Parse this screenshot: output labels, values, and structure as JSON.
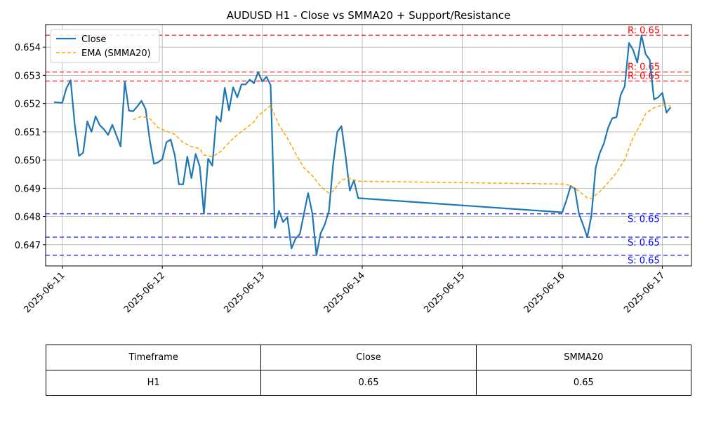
{
  "chart_data": {
    "type": "line",
    "title": "AUDUSD H1 - Close vs SMMA20 + Support/Resistance",
    "xlabel": "",
    "ylabel": "",
    "x_ticks": [
      "2025-06-11",
      "2025-06-12",
      "2025-06-13",
      "2025-06-14",
      "2025-06-15",
      "2025-06-16",
      "2025-06-17"
    ],
    "y_ticks": [
      "0.647",
      "0.648",
      "0.649",
      "0.650",
      "0.651",
      "0.652",
      "0.653",
      "0.654"
    ],
    "xlim": [
      "2025-06-10T20:00",
      "2025-06-17T07:00"
    ],
    "ylim": [
      0.64625,
      0.6548
    ],
    "grid": true,
    "legend_position": "top-left",
    "series": [
      {
        "name": "Close",
        "color": "#1f77b4",
        "style": "solid",
        "points": [
          [
            "2025-06-10T22:00",
            0.65205
          ],
          [
            "2025-06-11T00:00",
            0.65203
          ],
          [
            "2025-06-11T01:00",
            0.65255
          ],
          [
            "2025-06-11T02:00",
            0.65283
          ],
          [
            "2025-06-11T03:00",
            0.65125
          ],
          [
            "2025-06-11T04:00",
            0.65015
          ],
          [
            "2025-06-11T05:00",
            0.65026
          ],
          [
            "2025-06-11T06:00",
            0.65137
          ],
          [
            "2025-06-11T07:00",
            0.651
          ],
          [
            "2025-06-11T08:00",
            0.65155
          ],
          [
            "2025-06-11T09:00",
            0.65123
          ],
          [
            "2025-06-11T10:00",
            0.65109
          ],
          [
            "2025-06-11T11:00",
            0.65089
          ],
          [
            "2025-06-11T12:00",
            0.65125
          ],
          [
            "2025-06-11T13:00",
            0.65087
          ],
          [
            "2025-06-11T14:00",
            0.65048
          ],
          [
            "2025-06-11T15:00",
            0.65278
          ],
          [
            "2025-06-11T16:00",
            0.65175
          ],
          [
            "2025-06-11T17:00",
            0.65173
          ],
          [
            "2025-06-11T18:00",
            0.6519
          ],
          [
            "2025-06-11T19:00",
            0.6521
          ],
          [
            "2025-06-11T20:00",
            0.6518
          ],
          [
            "2025-06-11T21:00",
            0.6507
          ],
          [
            "2025-06-11T22:00",
            0.64987
          ],
          [
            "2025-06-11T23:00",
            0.64992
          ],
          [
            "2025-06-12T00:00",
            0.65003
          ],
          [
            "2025-06-12T01:00",
            0.65063
          ],
          [
            "2025-06-12T02:00",
            0.65073
          ],
          [
            "2025-06-12T03:00",
            0.65017
          ],
          [
            "2025-06-12T04:00",
            0.64914
          ],
          [
            "2025-06-12T05:00",
            0.64914
          ],
          [
            "2025-06-12T06:00",
            0.65012
          ],
          [
            "2025-06-12T07:00",
            0.64936
          ],
          [
            "2025-06-12T08:00",
            0.65022
          ],
          [
            "2025-06-12T09:00",
            0.64977
          ],
          [
            "2025-06-12T10:00",
            0.6481
          ],
          [
            "2025-06-12T11:00",
            0.65005
          ],
          [
            "2025-06-12T12:00",
            0.6498
          ],
          [
            "2025-06-12T13:00",
            0.65155
          ],
          [
            "2025-06-12T14:00",
            0.65136
          ],
          [
            "2025-06-12T15:00",
            0.65256
          ],
          [
            "2025-06-12T16:00",
            0.65176
          ],
          [
            "2025-06-12T17:00",
            0.65258
          ],
          [
            "2025-06-12T18:00",
            0.65222
          ],
          [
            "2025-06-12T19:00",
            0.65268
          ],
          [
            "2025-06-12T20:00",
            0.65268
          ],
          [
            "2025-06-12T21:00",
            0.65285
          ],
          [
            "2025-06-12T22:00",
            0.65272
          ],
          [
            "2025-06-12T23:00",
            0.65312
          ],
          [
            "2025-06-13T00:00",
            0.65278
          ],
          [
            "2025-06-13T01:00",
            0.65295
          ],
          [
            "2025-06-13T02:00",
            0.65265
          ],
          [
            "2025-06-13T03:00",
            0.6476
          ],
          [
            "2025-06-13T04:00",
            0.6482
          ],
          [
            "2025-06-13T05:00",
            0.6478
          ],
          [
            "2025-06-13T06:00",
            0.64798
          ],
          [
            "2025-06-13T07:00",
            0.64687
          ],
          [
            "2025-06-13T08:00",
            0.64722
          ],
          [
            "2025-06-13T09:00",
            0.64738
          ],
          [
            "2025-06-13T10:00",
            0.6481
          ],
          [
            "2025-06-13T11:00",
            0.64883
          ],
          [
            "2025-06-13T12:00",
            0.64811
          ],
          [
            "2025-06-13T13:00",
            0.64663
          ],
          [
            "2025-06-13T14:00",
            0.6474
          ],
          [
            "2025-06-13T15:00",
            0.64772
          ],
          [
            "2025-06-13T16:00",
            0.6482
          ],
          [
            "2025-06-13T17:00",
            0.64985
          ],
          [
            "2025-06-13T18:00",
            0.651
          ],
          [
            "2025-06-13T19:00",
            0.6512
          ],
          [
            "2025-06-13T20:00",
            0.65012
          ],
          [
            "2025-06-13T21:00",
            0.64892
          ],
          [
            "2025-06-13T22:00",
            0.64928
          ],
          [
            "2025-06-13T23:00",
            0.64865
          ],
          [
            "2025-06-16T00:00",
            0.64815
          ],
          [
            "2025-06-16T01:00",
            0.64858
          ],
          [
            "2025-06-16T02:00",
            0.64908
          ],
          [
            "2025-06-16T03:00",
            0.649
          ],
          [
            "2025-06-16T04:00",
            0.6481
          ],
          [
            "2025-06-16T05:00",
            0.6477
          ],
          [
            "2025-06-16T06:00",
            0.64727
          ],
          [
            "2025-06-16T07:00",
            0.64804
          ],
          [
            "2025-06-16T08:00",
            0.64973
          ],
          [
            "2025-06-16T09:00",
            0.65025
          ],
          [
            "2025-06-16T10:00",
            0.6506
          ],
          [
            "2025-06-16T11:00",
            0.65115
          ],
          [
            "2025-06-16T12:00",
            0.65148
          ],
          [
            "2025-06-16T13:00",
            0.65152
          ],
          [
            "2025-06-16T14:00",
            0.6523
          ],
          [
            "2025-06-16T15:00",
            0.65262
          ],
          [
            "2025-06-16T16:00",
            0.65415
          ],
          [
            "2025-06-16T17:00",
            0.6539
          ],
          [
            "2025-06-16T18:00",
            0.65345
          ],
          [
            "2025-06-16T19:00",
            0.65442
          ],
          [
            "2025-06-16T20:00",
            0.65375
          ],
          [
            "2025-06-16T21:00",
            0.65355
          ],
          [
            "2025-06-16T22:00",
            0.65215
          ],
          [
            "2025-06-16T23:00",
            0.65222
          ],
          [
            "2025-06-17T00:00",
            0.65238
          ],
          [
            "2025-06-17T01:00",
            0.65168
          ],
          [
            "2025-06-17T02:00",
            0.65187
          ]
        ]
      },
      {
        "name": "EMA (SMMA20)",
        "color": "#ffa500",
        "style": "dashed",
        "points": [
          [
            "2025-06-11T17:00",
            0.65143
          ],
          [
            "2025-06-11T19:00",
            0.65155
          ],
          [
            "2025-06-11T21:00",
            0.65147
          ],
          [
            "2025-06-11T23:00",
            0.65115
          ],
          [
            "2025-06-12T01:00",
            0.65102
          ],
          [
            "2025-06-12T03:00",
            0.65091
          ],
          [
            "2025-06-12T05:00",
            0.65062
          ],
          [
            "2025-06-12T07:00",
            0.65048
          ],
          [
            "2025-06-12T09:00",
            0.6504
          ],
          [
            "2025-06-12T10:00",
            0.65018
          ],
          [
            "2025-06-12T12:00",
            0.65012
          ],
          [
            "2025-06-12T14:00",
            0.6503
          ],
          [
            "2025-06-12T16:00",
            0.65062
          ],
          [
            "2025-06-12T18:00",
            0.6509
          ],
          [
            "2025-06-12T20:00",
            0.65112
          ],
          [
            "2025-06-12T22:00",
            0.65135
          ],
          [
            "2025-06-12T23:00",
            0.65157
          ],
          [
            "2025-06-13T01:00",
            0.65181
          ],
          [
            "2025-06-13T02:00",
            0.65194
          ],
          [
            "2025-06-13T04:00",
            0.65124
          ],
          [
            "2025-06-13T06:00",
            0.65078
          ],
          [
            "2025-06-13T08:00",
            0.65023
          ],
          [
            "2025-06-13T10:00",
            0.64972
          ],
          [
            "2025-06-13T12:00",
            0.64945
          ],
          [
            "2025-06-13T14:00",
            0.64907
          ],
          [
            "2025-06-13T16:00",
            0.64883
          ],
          [
            "2025-06-13T17:00",
            0.6489
          ],
          [
            "2025-06-13T18:00",
            0.6491
          ],
          [
            "2025-06-13T19:00",
            0.6493
          ],
          [
            "2025-06-13T21:00",
            0.64935
          ],
          [
            "2025-06-13T23:00",
            0.64925
          ],
          [
            "2025-06-16T00:00",
            0.64915
          ],
          [
            "2025-06-16T02:00",
            0.6491
          ],
          [
            "2025-06-16T04:00",
            0.6489
          ],
          [
            "2025-06-16T06:00",
            0.64866
          ],
          [
            "2025-06-16T07:00",
            0.64864
          ],
          [
            "2025-06-16T09:00",
            0.64888
          ],
          [
            "2025-06-16T11:00",
            0.6492
          ],
          [
            "2025-06-16T13:00",
            0.64955
          ],
          [
            "2025-06-16T15:00",
            0.65002
          ],
          [
            "2025-06-16T17:00",
            0.6508
          ],
          [
            "2025-06-16T19:00",
            0.65133
          ],
          [
            "2025-06-16T20:00",
            0.65165
          ],
          [
            "2025-06-16T22:00",
            0.65185
          ],
          [
            "2025-06-17T00:00",
            0.65195
          ],
          [
            "2025-06-17T02:00",
            0.65192
          ]
        ]
      }
    ],
    "resistance_levels": [
      {
        "value": 0.65442,
        "label": "R: 0.65"
      },
      {
        "value": 0.65312,
        "label": "R: 0.65"
      },
      {
        "value": 0.6528,
        "label": "R: 0.65"
      }
    ],
    "support_levels": [
      {
        "value": 0.6481,
        "label": "S: 0.65"
      },
      {
        "value": 0.64727,
        "label": "S: 0.65"
      },
      {
        "value": 0.64663,
        "label": "S: 0.65"
      }
    ],
    "colors": {
      "resistance": "#ff0000",
      "support": "#0000ff"
    }
  },
  "table": {
    "headers": [
      "Timeframe",
      "Close",
      "SMMA20"
    ],
    "row": [
      "H1",
      "0.65",
      "0.65"
    ]
  }
}
